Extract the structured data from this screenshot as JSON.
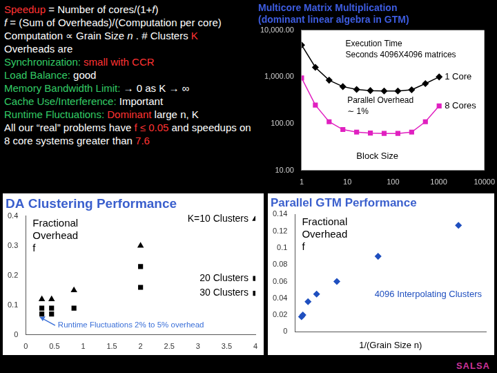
{
  "text_panel": {
    "lines": [
      [
        {
          "text": "Speedup",
          "color": "#ff3333"
        },
        {
          "text": " = Number of cores/(1+",
          "color": "#ffffff"
        },
        {
          "text": "f",
          "color": "#ffffff",
          "italic": true
        },
        {
          "text": ")",
          "color": "#ffffff"
        }
      ],
      [
        {
          "text": "f",
          "color": "#ffffff",
          "italic": true
        },
        {
          "text": " = (Sum of Overheads)/(Computation per core)",
          "color": "#ffffff"
        }
      ],
      [
        {
          "text": "Computation ∝ Grain Size ",
          "color": "#ffffff"
        },
        {
          "text": "n",
          "color": "#ffffff",
          "italic": true
        },
        {
          "text": " . # Clusters ",
          "color": "#ffffff"
        },
        {
          "text": "K",
          "color": "#ff3333"
        }
      ],
      [
        {
          "text": "Overheads are",
          "color": "#ffffff"
        }
      ],
      [
        {
          "text": "Synchronization: ",
          "color": "#33cc66"
        },
        {
          "text": "small with CCR",
          "color": "#ff3333"
        }
      ],
      [
        {
          "text": "Load Balance: ",
          "color": "#33cc66"
        },
        {
          "text": "good",
          "color": "#ffffff"
        }
      ],
      [
        {
          "text": "Memory Bandwidth Limit: ",
          "color": "#33cc66"
        },
        {
          "text": "→ 0 as K → ∞",
          "color": "#ffffff"
        }
      ],
      [
        {
          "text": "Cache Use/Interference: ",
          "color": "#33cc66"
        },
        {
          "text": "Important",
          "color": "#ffffff"
        }
      ],
      [
        {
          "text": "Runtime Fluctuations: ",
          "color": "#33cc66"
        },
        {
          "text": "Dominant",
          "color": "#ff3333"
        },
        {
          "text": " large n, K",
          "color": "#ffffff"
        }
      ],
      [
        {
          "text": "All our “real” problems have ",
          "color": "#ffffff"
        },
        {
          "text": "f ≤ 0.05",
          "color": "#ff3333"
        },
        {
          "text": " and speedups on 8 core systems greater than ",
          "color": "#ffffff"
        },
        {
          "text": "7.6",
          "color": "#ff3333"
        }
      ]
    ]
  },
  "chart_data": [
    {
      "type": "line",
      "title": [
        "Multicore Matrix Multiplication",
        "(dominant linear algebra in GTM)"
      ],
      "annotations": [
        [
          "Execution Time",
          "Seconds 4096X4096 matrices"
        ],
        [
          "Parallel Overhead",
          "∼ 1%"
        ]
      ],
      "xlabel": "Block Size",
      "log": true,
      "grid": false,
      "x": [
        1,
        2,
        4,
        8,
        16,
        32,
        64,
        128,
        256,
        512,
        1024
      ],
      "series": [
        {
          "name": "1 Core",
          "color": "#000000",
          "marker": "diamond",
          "values": [
            4800,
            1600,
            850,
            620,
            540,
            510,
            500,
            500,
            530,
            720,
            1000
          ]
        },
        {
          "name": "8 Cores",
          "color": "#e020c0",
          "marker": "square",
          "values": [
            950,
            250,
            110,
            75,
            66,
            63,
            62,
            62,
            66,
            110,
            240
          ]
        }
      ],
      "xlim": [
        1,
        10000
      ],
      "xticks": [
        1,
        10,
        100,
        1000,
        10000
      ],
      "ylim": [
        10,
        10000
      ],
      "yticks": [
        {
          "value": 10,
          "label": "10.00"
        },
        {
          "value": 100,
          "label": "100.00"
        },
        {
          "value": 1000,
          "label": "1,000.00"
        },
        {
          "value": 10000,
          "label": "10,000.00"
        }
      ]
    },
    {
      "type": "scatter",
      "title": "DA Clustering Performance",
      "ylabel": [
        "Fractional",
        "Overhead",
        "f"
      ],
      "annotations": [
        [
          "Runtime Fluctuations 2% to 5% overhead"
        ]
      ],
      "grid": false,
      "series": [
        {
          "name": "K=10 Clusters",
          "color": "#000000",
          "marker": "triangle",
          "x": [
            0.28,
            0.45,
            0.84,
            2.0,
            4.0
          ],
          "values": [
            0.12,
            0.12,
            0.15,
            0.3,
            0.39
          ]
        },
        {
          "name": "20 Clusters",
          "color": "#000000",
          "marker": "square",
          "x": [
            0.28,
            0.45,
            0.84,
            2.0,
            4.0
          ],
          "values": [
            0.09,
            0.09,
            0.09,
            0.23,
            0.19
          ]
        },
        {
          "name": "30 Clusters",
          "color": "#000000",
          "marker": "square",
          "x": [
            0.28,
            0.45,
            2.0,
            4.0
          ],
          "values": [
            0.07,
            0.07,
            0.16,
            0.14
          ]
        }
      ],
      "xlim": [
        0,
        4
      ],
      "xticks": [
        0,
        0.5,
        1,
        1.5,
        2,
        2.5,
        3,
        3.5,
        4
      ],
      "ylim": [
        0,
        0.4
      ],
      "yticks": [
        0,
        0.1,
        0.2,
        0.3,
        0.4
      ]
    },
    {
      "type": "scatter",
      "title": "Parallel GTM Performance",
      "ylabel": [
        "Fractional",
        "Overhead",
        "f"
      ],
      "xlabel": "1/(Grain Size n)",
      "grid": false,
      "tick_labels": "y",
      "series": [
        {
          "name": "4096 Interpolating Clusters",
          "color": "#1f4fbf",
          "marker": "diamond",
          "x": [
            0.034,
            0.041,
            0.068,
            0.113,
            0.219,
            0.435,
            0.856
          ],
          "values": [
            0.018,
            0.02,
            0.036,
            0.045,
            0.06,
            0.09,
            0.127
          ]
        }
      ],
      "xlim": [
        0,
        1
      ],
      "ylim": [
        0,
        0.14
      ],
      "yticks": [
        0,
        0.02,
        0.04,
        0.06,
        0.08,
        0.1,
        0.12,
        0.14
      ]
    }
  ],
  "footer": {
    "text": "SALSA",
    "color": "#cc3399"
  }
}
